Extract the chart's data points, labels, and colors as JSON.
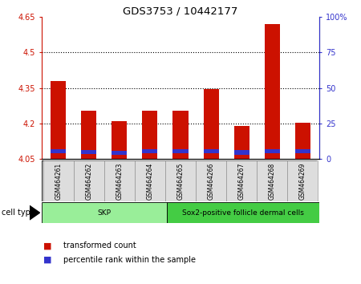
{
  "title": "GDS3753 / 10442177",
  "samples": [
    "GSM464261",
    "GSM464262",
    "GSM464263",
    "GSM464264",
    "GSM464265",
    "GSM464266",
    "GSM464267",
    "GSM464268",
    "GSM464269"
  ],
  "transformed_count": [
    4.38,
    4.255,
    4.21,
    4.255,
    4.255,
    4.345,
    4.19,
    4.62,
    4.205
  ],
  "percentile_bottom": [
    4.075,
    4.07,
    4.068,
    4.075,
    4.073,
    4.073,
    4.069,
    4.075,
    4.073
  ],
  "percentile_height": [
    0.018,
    0.018,
    0.018,
    0.018,
    0.018,
    0.018,
    0.018,
    0.018,
    0.018
  ],
  "baseline": 4.05,
  "ylim_left": [
    4.05,
    4.65
  ],
  "ylim_right": [
    0,
    100
  ],
  "yticks_left": [
    4.05,
    4.2,
    4.35,
    4.5,
    4.65
  ],
  "yticks_right": [
    0,
    25,
    50,
    75,
    100
  ],
  "ytick_labels_left": [
    "4.05",
    "4.2",
    "4.35",
    "4.5",
    "4.65"
  ],
  "ytick_labels_right": [
    "0",
    "25",
    "50",
    "75",
    "100%"
  ],
  "grid_lines": [
    4.2,
    4.35,
    4.5
  ],
  "bar_color_red": "#CC1100",
  "bar_color_blue": "#3333CC",
  "cell_type_groups": [
    {
      "label": "SKP",
      "start": 0,
      "end": 3,
      "color": "#99EE99"
    },
    {
      "label": "Sox2-positive follicle dermal cells",
      "start": 4,
      "end": 8,
      "color": "#44CC44"
    }
  ],
  "cell_type_label": "cell type",
  "legend_red_label": "transformed count",
  "legend_blue_label": "percentile rank within the sample",
  "bar_width": 0.5
}
